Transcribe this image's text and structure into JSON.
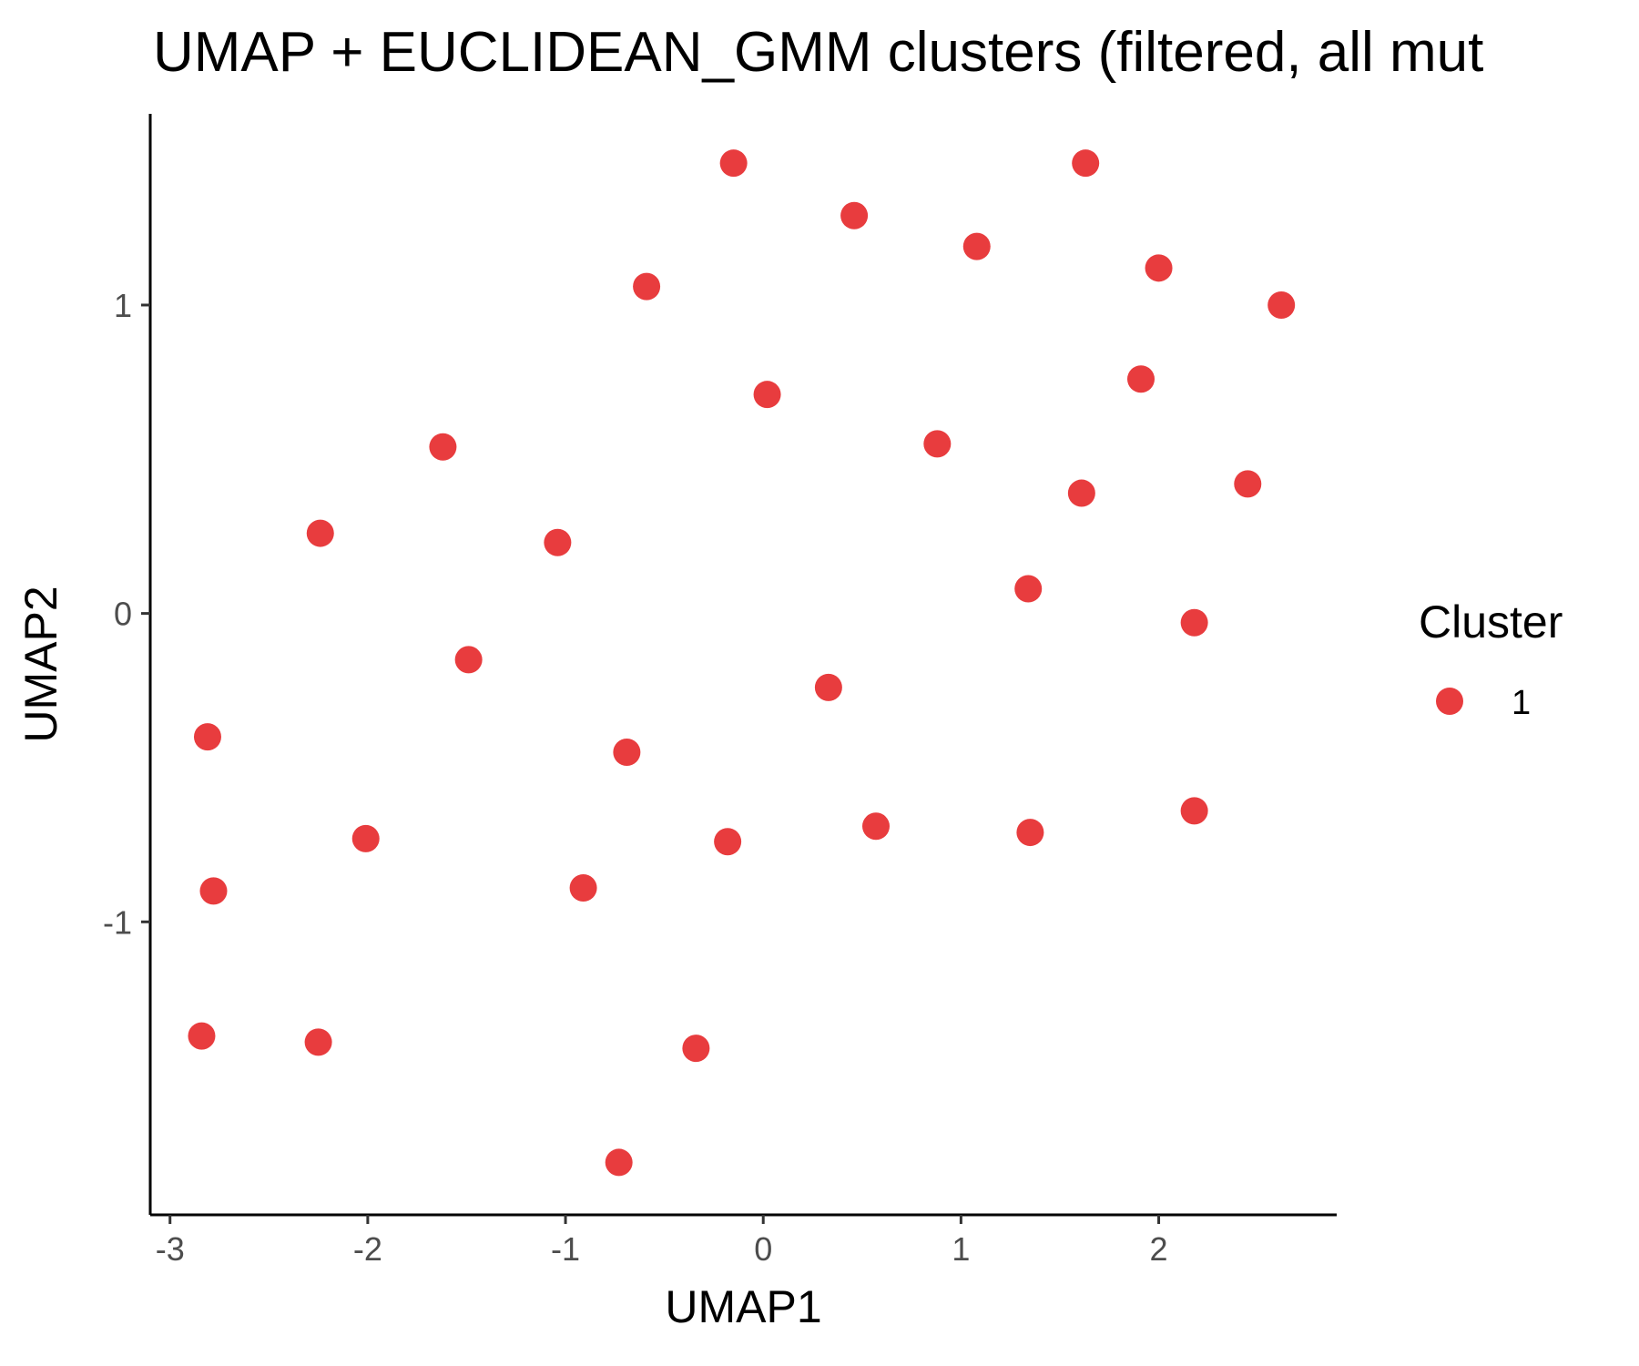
{
  "chart_data": {
    "type": "scatter",
    "title": "UMAP + EUCLIDEAN_GMM clusters (filtered, all mut",
    "xlabel": "UMAP1",
    "ylabel": "UMAP2",
    "xlim": [
      -3.1,
      2.9
    ],
    "ylim": [
      -1.95,
      1.62
    ],
    "x_ticks": [
      -3,
      -2,
      -1,
      0,
      1,
      2
    ],
    "y_ticks": [
      -1,
      0,
      1
    ],
    "x_tick_labels": [
      "-3",
      "-2",
      "-1",
      "0",
      "1",
      "2"
    ],
    "y_tick_labels": [
      "-1",
      "0",
      "1"
    ],
    "grid": false,
    "legend": {
      "title": "Cluster",
      "position": "right",
      "entries": [
        "1"
      ]
    },
    "colors": {
      "1": "#e41a1c"
    },
    "series": [
      {
        "name": "1",
        "points": [
          [
            -0.15,
            1.46
          ],
          [
            1.63,
            1.46
          ],
          [
            0.46,
            1.29
          ],
          [
            1.08,
            1.19
          ],
          [
            2.0,
            1.12
          ],
          [
            -0.59,
            1.06
          ],
          [
            2.62,
            1.0
          ],
          [
            1.91,
            0.76
          ],
          [
            0.02,
            0.71
          ],
          [
            -1.62,
            0.54
          ],
          [
            0.88,
            0.55
          ],
          [
            1.61,
            0.39
          ],
          [
            2.45,
            0.42
          ],
          [
            -2.24,
            0.26
          ],
          [
            -1.04,
            0.23
          ],
          [
            1.34,
            0.08
          ],
          [
            2.18,
            -0.03
          ],
          [
            -1.49,
            -0.15
          ],
          [
            0.33,
            -0.24
          ],
          [
            -2.81,
            -0.4
          ],
          [
            -0.69,
            -0.45
          ],
          [
            2.18,
            -0.64
          ],
          [
            -2.01,
            -0.73
          ],
          [
            -0.18,
            -0.74
          ],
          [
            0.57,
            -0.69
          ],
          [
            1.35,
            -0.71
          ],
          [
            -0.91,
            -0.89
          ],
          [
            -2.78,
            -0.9
          ],
          [
            -2.84,
            -1.37
          ],
          [
            -2.25,
            -1.39
          ],
          [
            -0.34,
            -1.41
          ],
          [
            -0.73,
            -1.78
          ]
        ]
      }
    ]
  }
}
